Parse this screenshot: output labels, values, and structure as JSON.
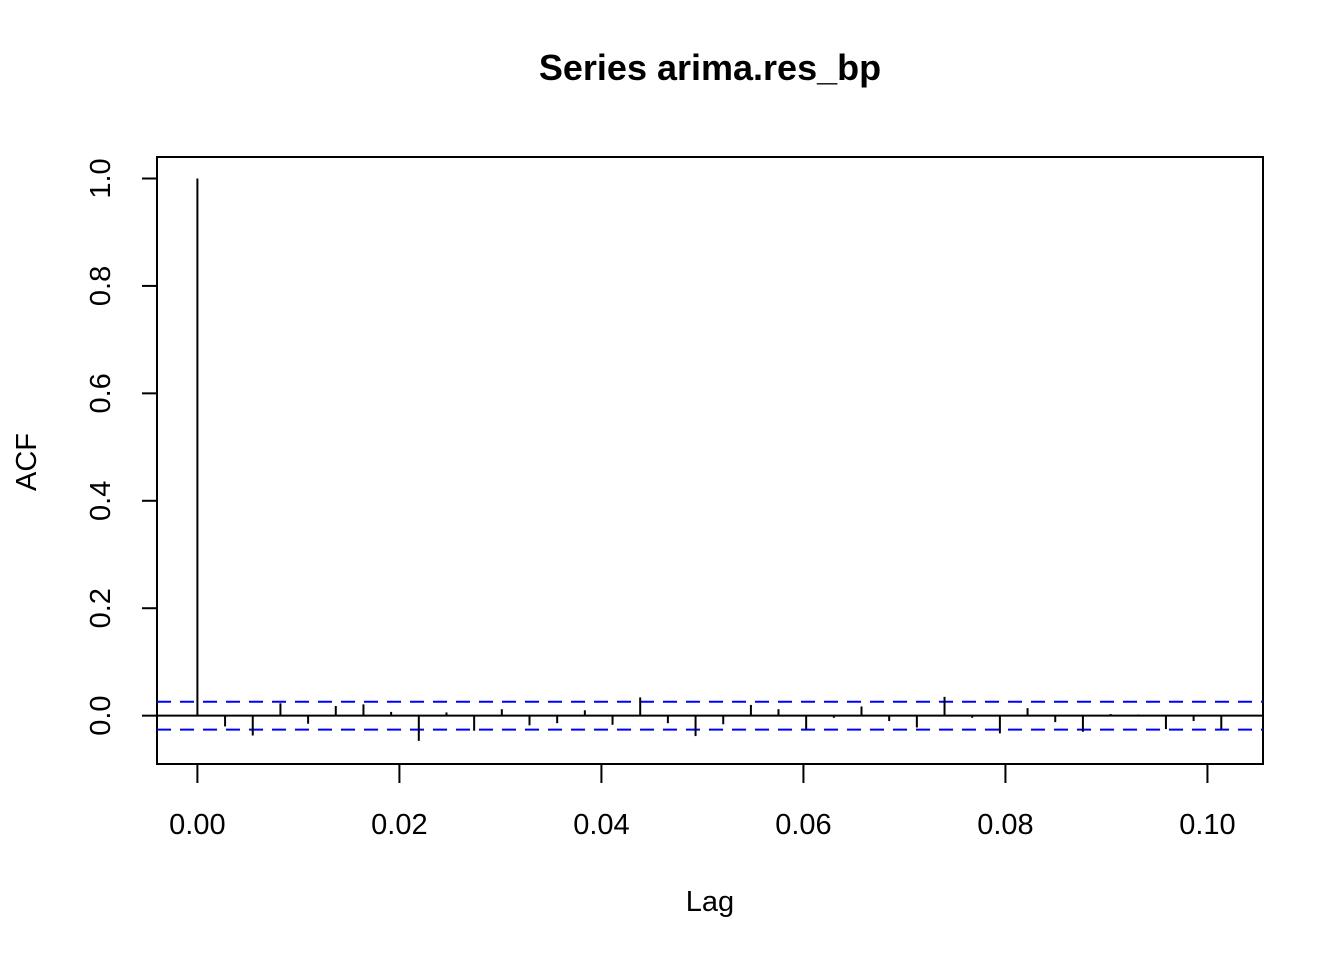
{
  "chart_data": {
    "type": "bar",
    "title": "Series  arima.res_bp",
    "xlabel": "Lag",
    "ylabel": "ACF",
    "xlim": [
      -0.004,
      0.1055
    ],
    "ylim": [
      -0.09,
      1.04
    ],
    "x_ticks": [
      "0.00",
      "0.02",
      "0.04",
      "0.06",
      "0.08",
      "0.10"
    ],
    "y_ticks": [
      "0.0",
      "0.2",
      "0.4",
      "0.6",
      "0.8",
      "1.0"
    ],
    "confidence_bound": 0.026,
    "confidence_color": "#0000ff",
    "bar_color": "#000000",
    "lag": [
      0.0,
      0.00274,
      0.00548,
      0.00822,
      0.01096,
      0.0137,
      0.01644,
      0.01918,
      0.02192,
      0.02466,
      0.0274,
      0.03014,
      0.03288,
      0.03562,
      0.03836,
      0.0411,
      0.04384,
      0.04658,
      0.04932,
      0.05206,
      0.0548,
      0.05753,
      0.06027,
      0.06301,
      0.06575,
      0.06849,
      0.07123,
      0.07397,
      0.07671,
      0.07945,
      0.08219,
      0.08493,
      0.08767,
      0.09041,
      0.09315,
      0.09589,
      0.09863,
      0.10137
    ],
    "acf": [
      1.0,
      -0.02,
      -0.037,
      0.023,
      -0.015,
      0.018,
      0.021,
      0.007,
      -0.047,
      0.006,
      -0.028,
      0.012,
      -0.018,
      -0.014,
      0.01,
      -0.017,
      0.034,
      -0.014,
      -0.038,
      -0.016,
      0.02,
      0.012,
      -0.027,
      -0.004,
      0.017,
      -0.01,
      -0.022,
      0.035,
      -0.004,
      -0.033,
      0.014,
      -0.012,
      -0.03,
      0.003,
      0.002,
      -0.025,
      -0.01,
      -0.025
    ]
  }
}
